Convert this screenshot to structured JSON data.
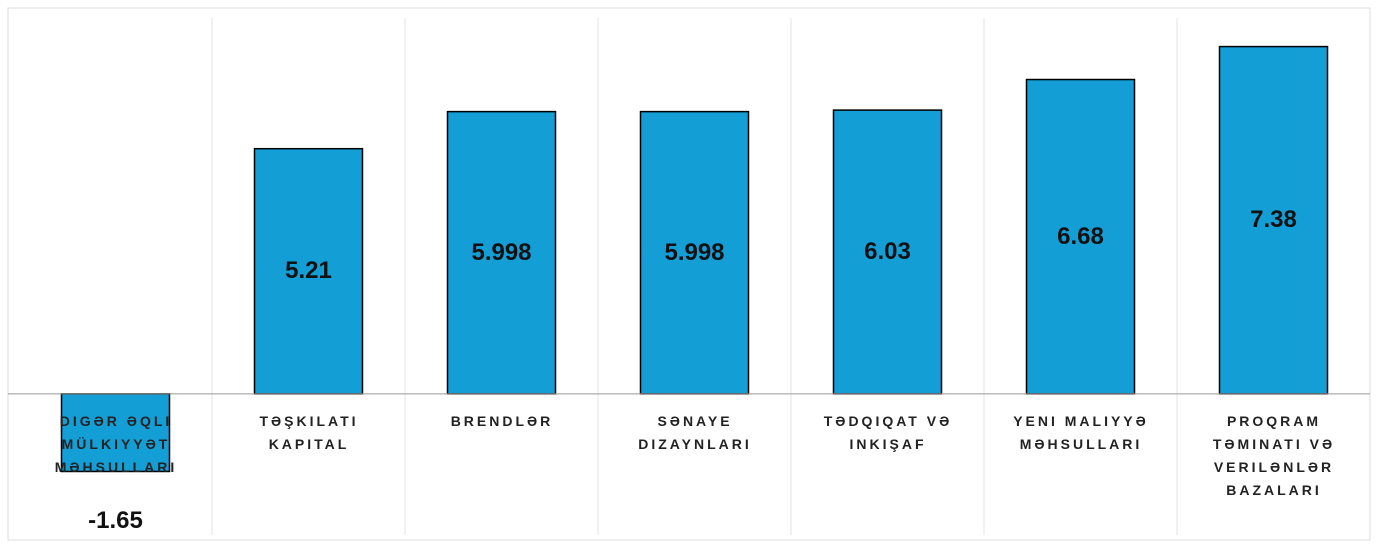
{
  "chart_data": {
    "type": "bar",
    "categories": [
      "DIGƏR ƏQLI MÜLKIYYƏT MƏHSULLARI",
      "TƏŞKILATI KAPITAL",
      "BRENDLƏR",
      "SƏNAYE DIZAYNLARI",
      "TƏDQIQAT VƏ INKIŞAF",
      "YENI MALIYYƏ MƏHSULLARI",
      "PROQRAM TƏMINATI VƏ VERILƏNLƏR BAZALARI"
    ],
    "values": [
      -1.65,
      5.21,
      5.998,
      5.998,
      6.03,
      6.68,
      7.38
    ],
    "color": "#139ed6",
    "ylim": [
      -3,
      8.2
    ]
  }
}
